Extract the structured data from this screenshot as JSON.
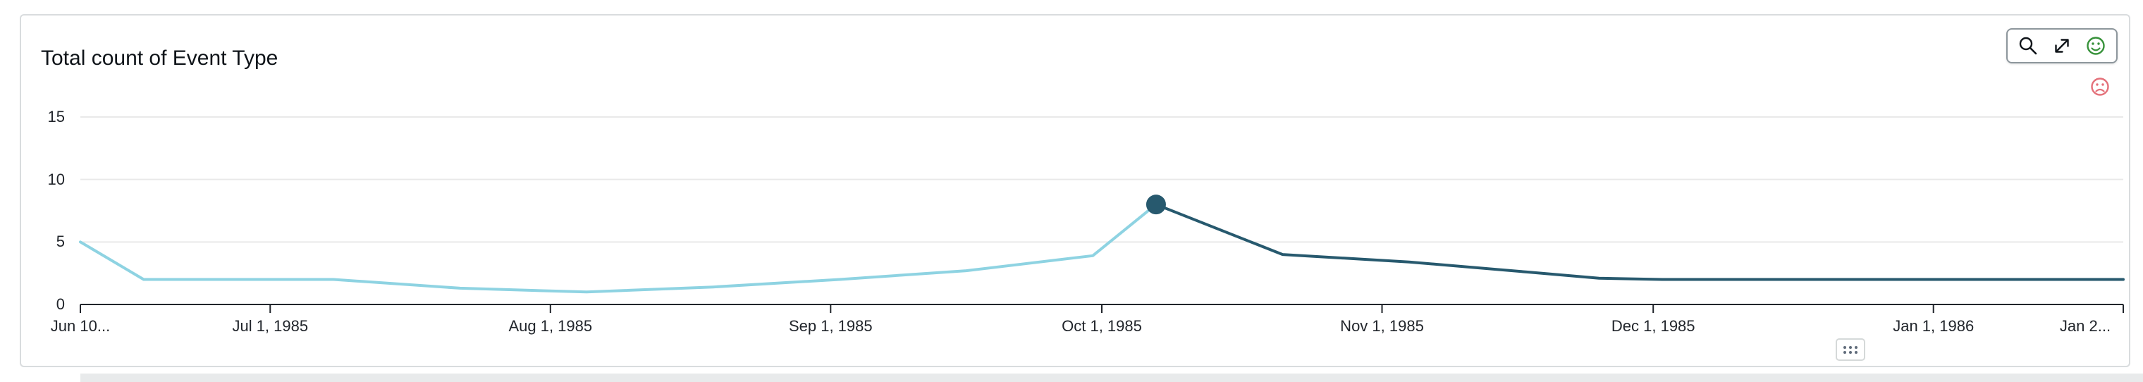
{
  "card": {
    "title": "Total count of Event Type"
  },
  "toolbar": {
    "icons": [
      {
        "name": "zoom-search-icon",
        "glyph": "magnifier",
        "color": "#0f1419"
      },
      {
        "name": "maximize-icon",
        "glyph": "diagonal-expand-arrows",
        "color": "#0f1419"
      },
      {
        "name": "feedback-positive-icon",
        "glyph": "smiley-face",
        "color": "#37923a"
      }
    ],
    "feedback_negative_icon": {
      "name": "feedback-negative-icon",
      "glyph": "frown-face",
      "color": "#e4717a"
    }
  },
  "colors": {
    "line_light": "#8ed3e2",
    "line_dark": "#27596e",
    "highlight_dot": "#27596e",
    "grid": "#e9e9e9",
    "axis": "#21252b"
  },
  "chart_data": {
    "type": "line",
    "title": "Total count of Event Type",
    "legend": false,
    "grid": true,
    "x_axis": {
      "unit": "date",
      "total_days": 226,
      "ticks": [
        {
          "day": 0,
          "label": "Jun 10..."
        },
        {
          "day": 21,
          "label": "Jul 1, 1985"
        },
        {
          "day": 52,
          "label": "Aug 1, 1985"
        },
        {
          "day": 83,
          "label": "Sep 1, 1985"
        },
        {
          "day": 113,
          "label": "Oct 1, 1985"
        },
        {
          "day": 144,
          "label": "Nov 1, 1985"
        },
        {
          "day": 174,
          "label": "Dec 1, 1985"
        },
        {
          "day": 205,
          "label": "Jan 1, 1986"
        },
        {
          "day": 226,
          "label": "Jan 2..."
        }
      ]
    },
    "y_axis": {
      "ticks": [
        0,
        5,
        10,
        15
      ],
      "min": 0,
      "max": 15
    },
    "series": [
      {
        "name": "light-blue-segment",
        "color": "#8ed3e2",
        "points": [
          [
            0,
            5
          ],
          [
            7,
            2
          ],
          [
            14,
            2
          ],
          [
            21,
            2
          ],
          [
            28,
            2
          ],
          [
            42,
            1.3
          ],
          [
            56,
            1
          ],
          [
            70,
            1.4
          ],
          [
            84,
            2
          ],
          [
            98,
            2.7
          ],
          [
            112,
            3.9
          ],
          [
            119,
            8
          ]
        ]
      },
      {
        "name": "dark-blue-segment",
        "color": "#27596e",
        "points": [
          [
            119,
            8
          ],
          [
            133,
            4
          ],
          [
            147,
            3.4
          ],
          [
            160,
            2.6
          ],
          [
            168,
            2.1
          ],
          [
            175,
            2
          ],
          [
            190,
            2
          ],
          [
            205,
            2
          ],
          [
            226,
            2
          ]
        ]
      }
    ],
    "highlight_point": {
      "day": 119,
      "value": 8,
      "color": "#27596e"
    }
  }
}
